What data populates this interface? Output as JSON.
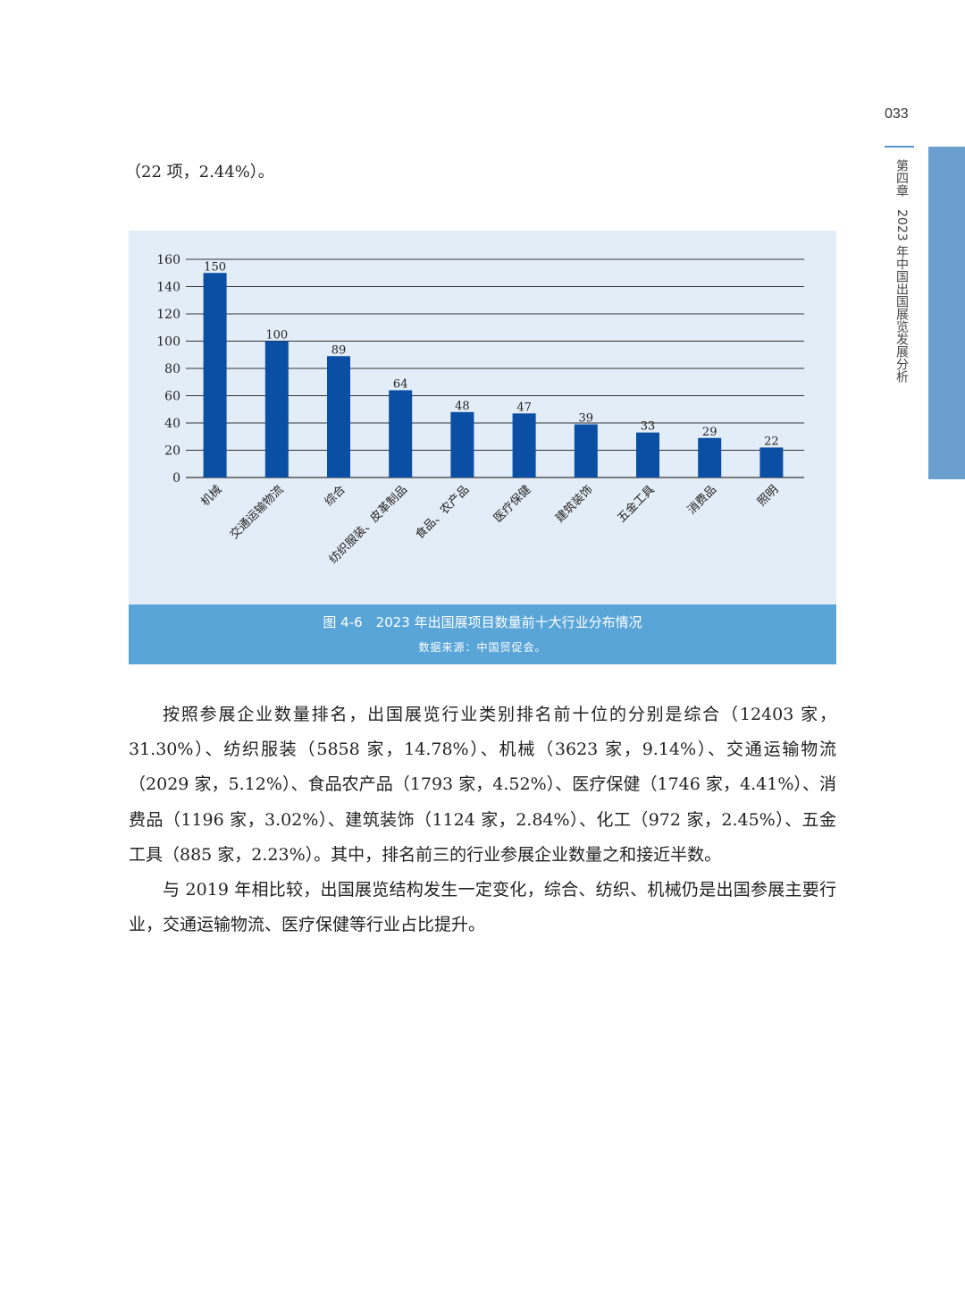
{
  "header": {
    "page_number": "033",
    "running_head": "第四章　2023 年中国出国展览发展分析",
    "tab_color": "#6a9fcf"
  },
  "lead_text": "（22 项，2.44%）。",
  "figure": {
    "caption": "图 4-6　2023 年出国展项目数量前十大行业分布情况",
    "source": "数据来源：中国贸促会。"
  },
  "chart_data": {
    "type": "bar",
    "categories": [
      "机械",
      "交通运输物流",
      "综合",
      "纺织服装、皮革制品",
      "食品、农产品",
      "医疗保健",
      "建筑装饰",
      "五金工具",
      "消费品",
      "照明"
    ],
    "values": [
      150,
      100,
      89,
      64,
      48,
      47,
      39,
      33,
      29,
      22
    ],
    "ylim": [
      0,
      160
    ],
    "yticks": [
      0,
      20,
      40,
      60,
      80,
      100,
      120,
      140,
      160
    ],
    "grid": true,
    "bar_color": "#0a4fa3",
    "background": "#e3edf7"
  },
  "body": {
    "paragraphs": [
      "按照参展企业数量排名，出国展览行业类别排名前十位的分别是综合（12403 家，31.30%）、纺织服装（5858 家，14.78%）、机械（3623 家，9.14%）、交通运输物流（2029 家，5.12%）、食品农产品（1793 家，4.52%）、医疗保健（1746 家，4.41%）、消费品（1196 家，3.02%）、建筑装饰（1124 家，2.84%）、化工（972 家，2.45%）、五金工具（885 家，2.23%）。其中，排名前三的行业参展企业数量之和接近半数。",
      "与 2019 年相比较，出国展览结构发生一定变化，综合、纺织、机械仍是出国参展主要行业，交通运输物流、医疗保健等行业占比提升。"
    ]
  }
}
